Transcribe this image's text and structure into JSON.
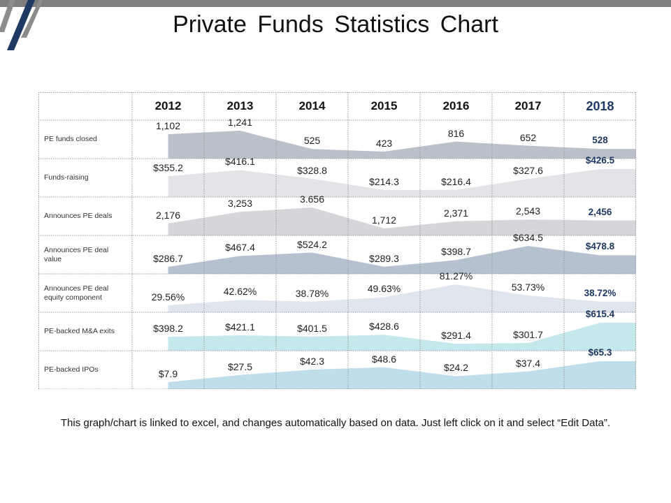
{
  "title": "Private Funds Statistics Chart",
  "footnote": "This graph/chart is linked to excel, and changes automatically based on data. Just left click on it and select “Edit Data”.",
  "chart_data": {
    "type": "area",
    "categories": [
      "2012",
      "2013",
      "2014",
      "2015",
      "2016",
      "2017",
      "2018"
    ],
    "series": [
      {
        "name": "PE funds closed",
        "values": [
          1102,
          1241,
          525,
          423,
          816,
          652,
          528
        ],
        "labels": [
          "1,102",
          "1,241",
          "525",
          "423",
          "816",
          "652",
          "528"
        ],
        "color": "#b4bac4"
      },
      {
        "name": "Funds-raising",
        "values": [
          355.2,
          416.1,
          328.8,
          214.3,
          216.4,
          327.6,
          426.5
        ],
        "labels": [
          "$355.2",
          "$416.1",
          "$328.8",
          "$214.3",
          "$216.4",
          "$327.6",
          "$426.5"
        ],
        "color": "#dfe1e5"
      },
      {
        "name": "Announces PE deals",
        "values": [
          2176,
          3253,
          3656,
          1712,
          2371,
          2543,
          2456
        ],
        "labels": [
          "2,176",
          "3,253",
          "3.656",
          "1,712",
          "2,371",
          "2,543",
          "2,456"
        ],
        "color": "#d3d0d5"
      },
      {
        "name": "Announces PE deal value",
        "values": [
          286.7,
          467.4,
          524.2,
          289.3,
          398.7,
          634.5,
          478.8
        ],
        "labels": [
          "$286.7",
          "$467.4",
          "$524.2",
          "$289.3",
          "$398.7",
          "$634.5",
          "$478.8"
        ],
        "color": "#aebacb"
      },
      {
        "name": "Announces PE deal equity component",
        "values": [
          29.56,
          42.62,
          38.78,
          49.63,
          81.27,
          53.73,
          38.72
        ],
        "labels": [
          "29.56%",
          "42.62%",
          "38.78%",
          "49.63%",
          "81.27%",
          "53.73%",
          "38.72%"
        ],
        "color": "#dde3ec"
      },
      {
        "name": "PE-backed M&A exits",
        "values": [
          398.2,
          421.1,
          401.5,
          428.6,
          291.4,
          301.7,
          615.4
        ],
        "labels": [
          "$398.2",
          "$421.1",
          "$401.5",
          "$428.6",
          "$291.4",
          "$301.7",
          "$615.4"
        ],
        "color": "#bfe6ea"
      },
      {
        "name": "PE-backed IPOs",
        "values": [
          7.9,
          27.5,
          42.3,
          48.6,
          24.2,
          37.4,
          65.3
        ],
        "labels": [
          "$7.9",
          "$27.5",
          "$42.3",
          "$48.6",
          "$24.2",
          "$37.4",
          "$65.3"
        ],
        "color": "#b9d9e8"
      }
    ],
    "row_labels": [
      "PE funds closed",
      "Funds-raising",
      "Announces PE deals",
      "Announces PE deal value",
      "Announces PE deal equity component",
      "PE-backed M&A exits",
      "PE-backed IPOs"
    ],
    "highlight_color": "#1f3864",
    "grid_color": "#9a9a9a"
  }
}
